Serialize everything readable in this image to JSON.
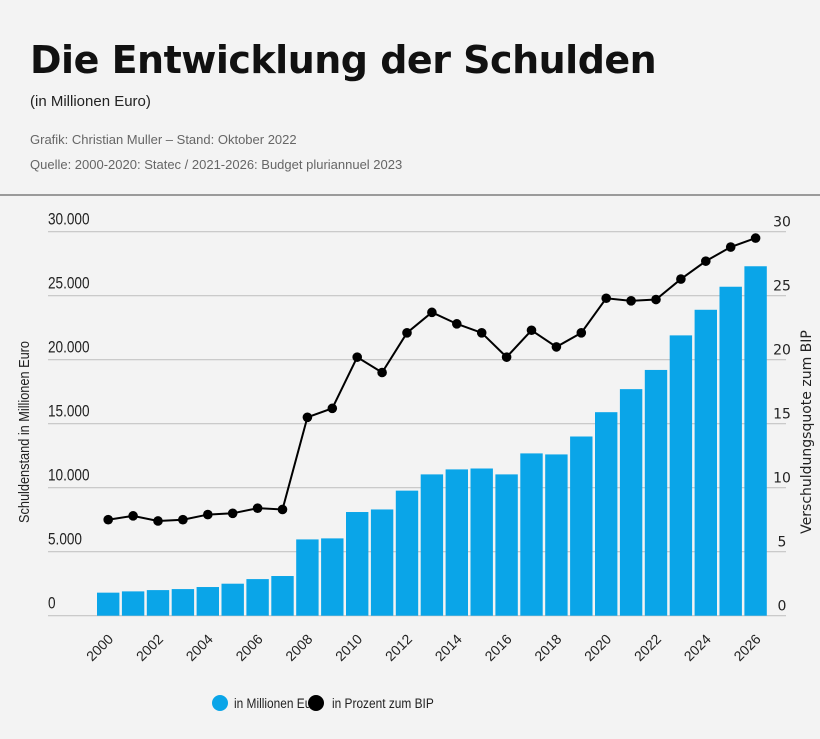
{
  "header": {
    "title": "Die Entwicklung der Schulden",
    "subtitle": "(in Millionen Euro)",
    "credit": "Grafik: Christian Muller – Stand: Oktober 2022",
    "source": "Quelle: 2000-2020: Statec / 2021-2026: Budget pluriannuel 2023"
  },
  "chart_data": {
    "type": "bar+line",
    "categories": [
      2000,
      2001,
      2002,
      2003,
      2004,
      2005,
      2006,
      2007,
      2008,
      2009,
      2010,
      2011,
      2012,
      2013,
      2014,
      2015,
      2016,
      2017,
      2018,
      2019,
      2020,
      2021,
      2022,
      2023,
      2024,
      2025,
      2026
    ],
    "x_tick_labels": [
      "2000",
      "2002",
      "2004",
      "2006",
      "2008",
      "2010",
      "2012",
      "2014",
      "2016",
      "2018",
      "2020",
      "2022",
      "2024",
      "2026"
    ],
    "series": [
      {
        "name": "in Millionen Euro",
        "type": "bar",
        "axis": "left",
        "color": "#0aa5e8",
        "values": [
          1800,
          1900,
          2000,
          2080,
          2240,
          2500,
          2860,
          3100,
          5960,
          6040,
          8100,
          8300,
          9770,
          11040,
          11430,
          11500,
          11040,
          12680,
          12600,
          14000,
          15900,
          17700,
          19200,
          21900,
          23900,
          25700,
          27300
        ]
      },
      {
        "name": "in Prozent zum BIP",
        "type": "line",
        "axis": "right",
        "color": "#000000",
        "values": [
          7.5,
          7.8,
          7.4,
          7.5,
          7.9,
          8.0,
          8.4,
          8.3,
          15.5,
          16.2,
          20.2,
          19.0,
          22.1,
          23.7,
          22.8,
          22.1,
          20.2,
          22.3,
          21.0,
          22.1,
          24.8,
          24.6,
          24.7,
          26.3,
          27.7,
          28.8,
          29.5
        ]
      }
    ],
    "ylabel_left": "Schuldenstand in Millionen Euro",
    "ylabel_right": "Verschuldungsquote zum BIP",
    "ylim_left": [
      0,
      30000
    ],
    "ylim_right": [
      0,
      30
    ],
    "y_ticks_left": [
      "0",
      "5.000",
      "10.000",
      "15.000",
      "20.000",
      "25.000",
      "30.000"
    ],
    "y_ticks_right": [
      "0",
      "5",
      "10",
      "15",
      "20",
      "25",
      "30"
    ],
    "grid": true,
    "legend": "bottom-center"
  }
}
